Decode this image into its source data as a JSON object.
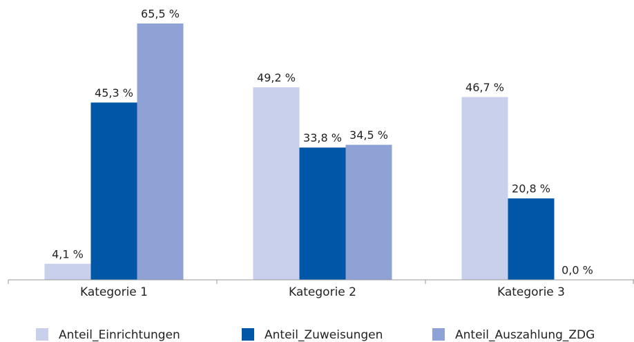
{
  "chart_data": {
    "type": "bar",
    "categories": [
      "Kategorie 1",
      "Kategorie 2",
      "Kategorie 3"
    ],
    "series": [
      {
        "name": "Anteil_Einrichtungen",
        "color": "#c8d0eb",
        "values": [
          4.1,
          49.2,
          46.7
        ],
        "value_labels": [
          "4,1 %",
          "49,2 %",
          "46,7 %"
        ]
      },
      {
        "name": "Anteil_Zuweisungen",
        "color": "#0057a8",
        "values": [
          45.3,
          33.8,
          20.8
        ],
        "value_labels": [
          "45,3 %",
          "33,8 %",
          "20,8 %"
        ]
      },
      {
        "name": "Anteil_Auszahlung_ZDG",
        "color": "#8ea2d6",
        "values": [
          65.5,
          34.5,
          0.0
        ],
        "value_labels": [
          "65,5 %",
          "34,5 %",
          "0,0 %"
        ]
      }
    ],
    "ylim": [
      0,
      70
    ]
  }
}
